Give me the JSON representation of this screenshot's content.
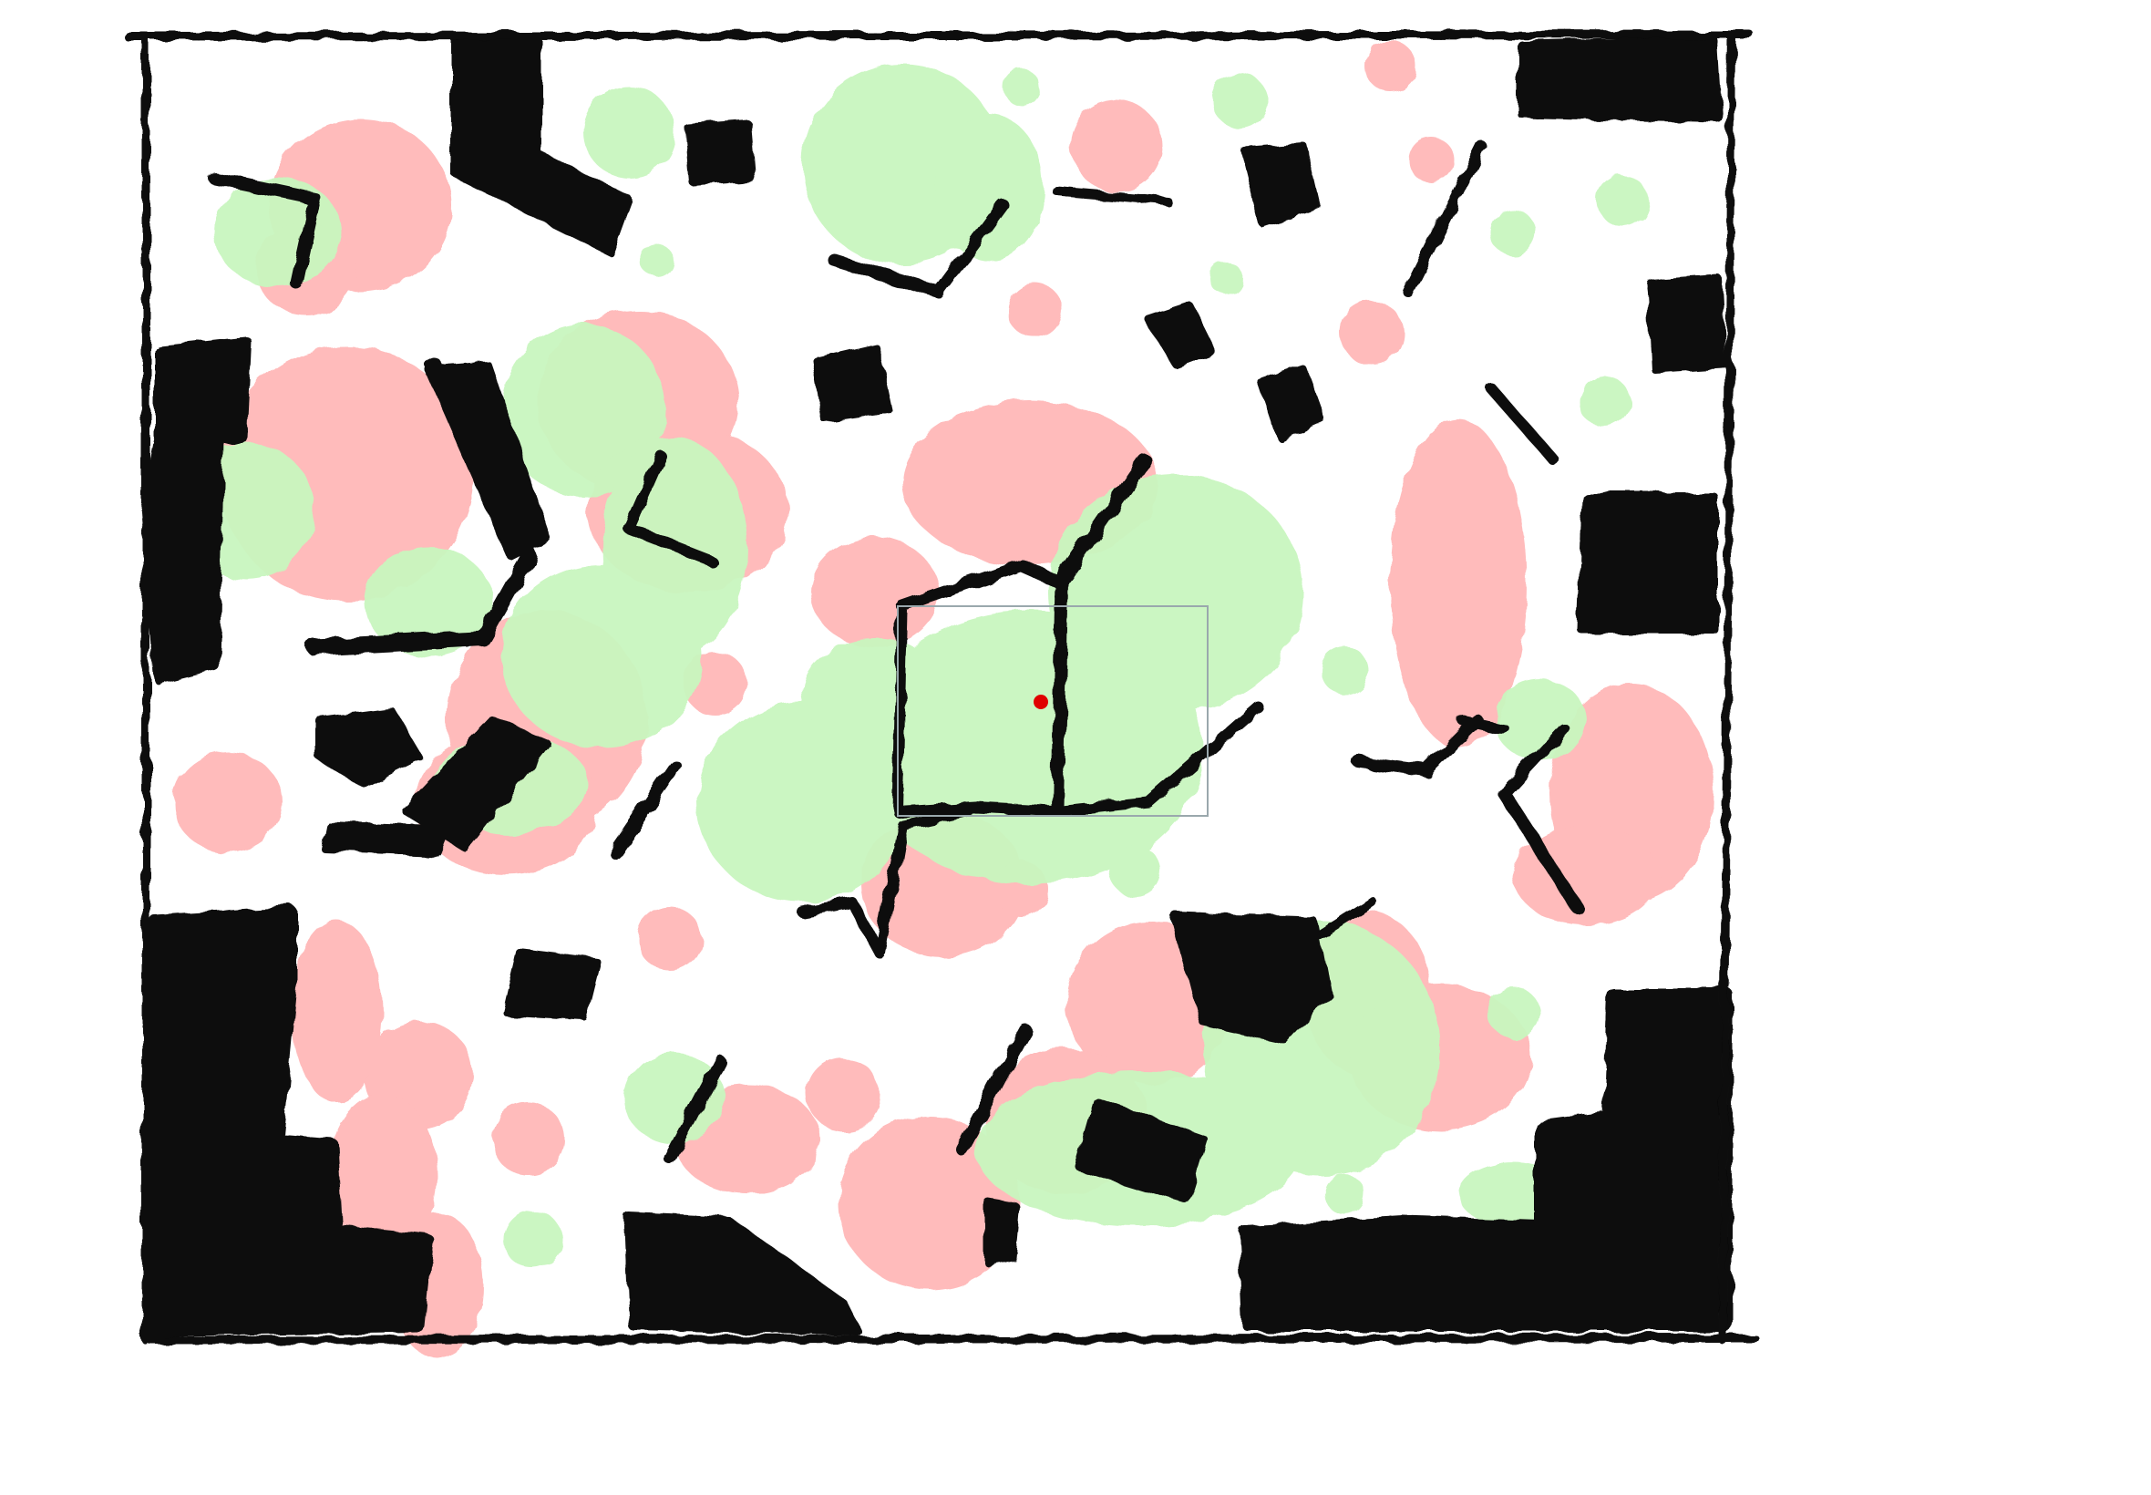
{
  "sketch": {
    "colors": {
      "background": "#ffffff",
      "ink": "#0c0c0c",
      "pink": "#ffb8b8",
      "green": "#c9f6bf",
      "selection_outline": "#9aa8ad",
      "marker": "#e00000"
    },
    "layers": [
      "pink-blobs",
      "green-blobs",
      "black-strokes",
      "frame",
      "selection-rect",
      "marker-dot"
    ]
  }
}
